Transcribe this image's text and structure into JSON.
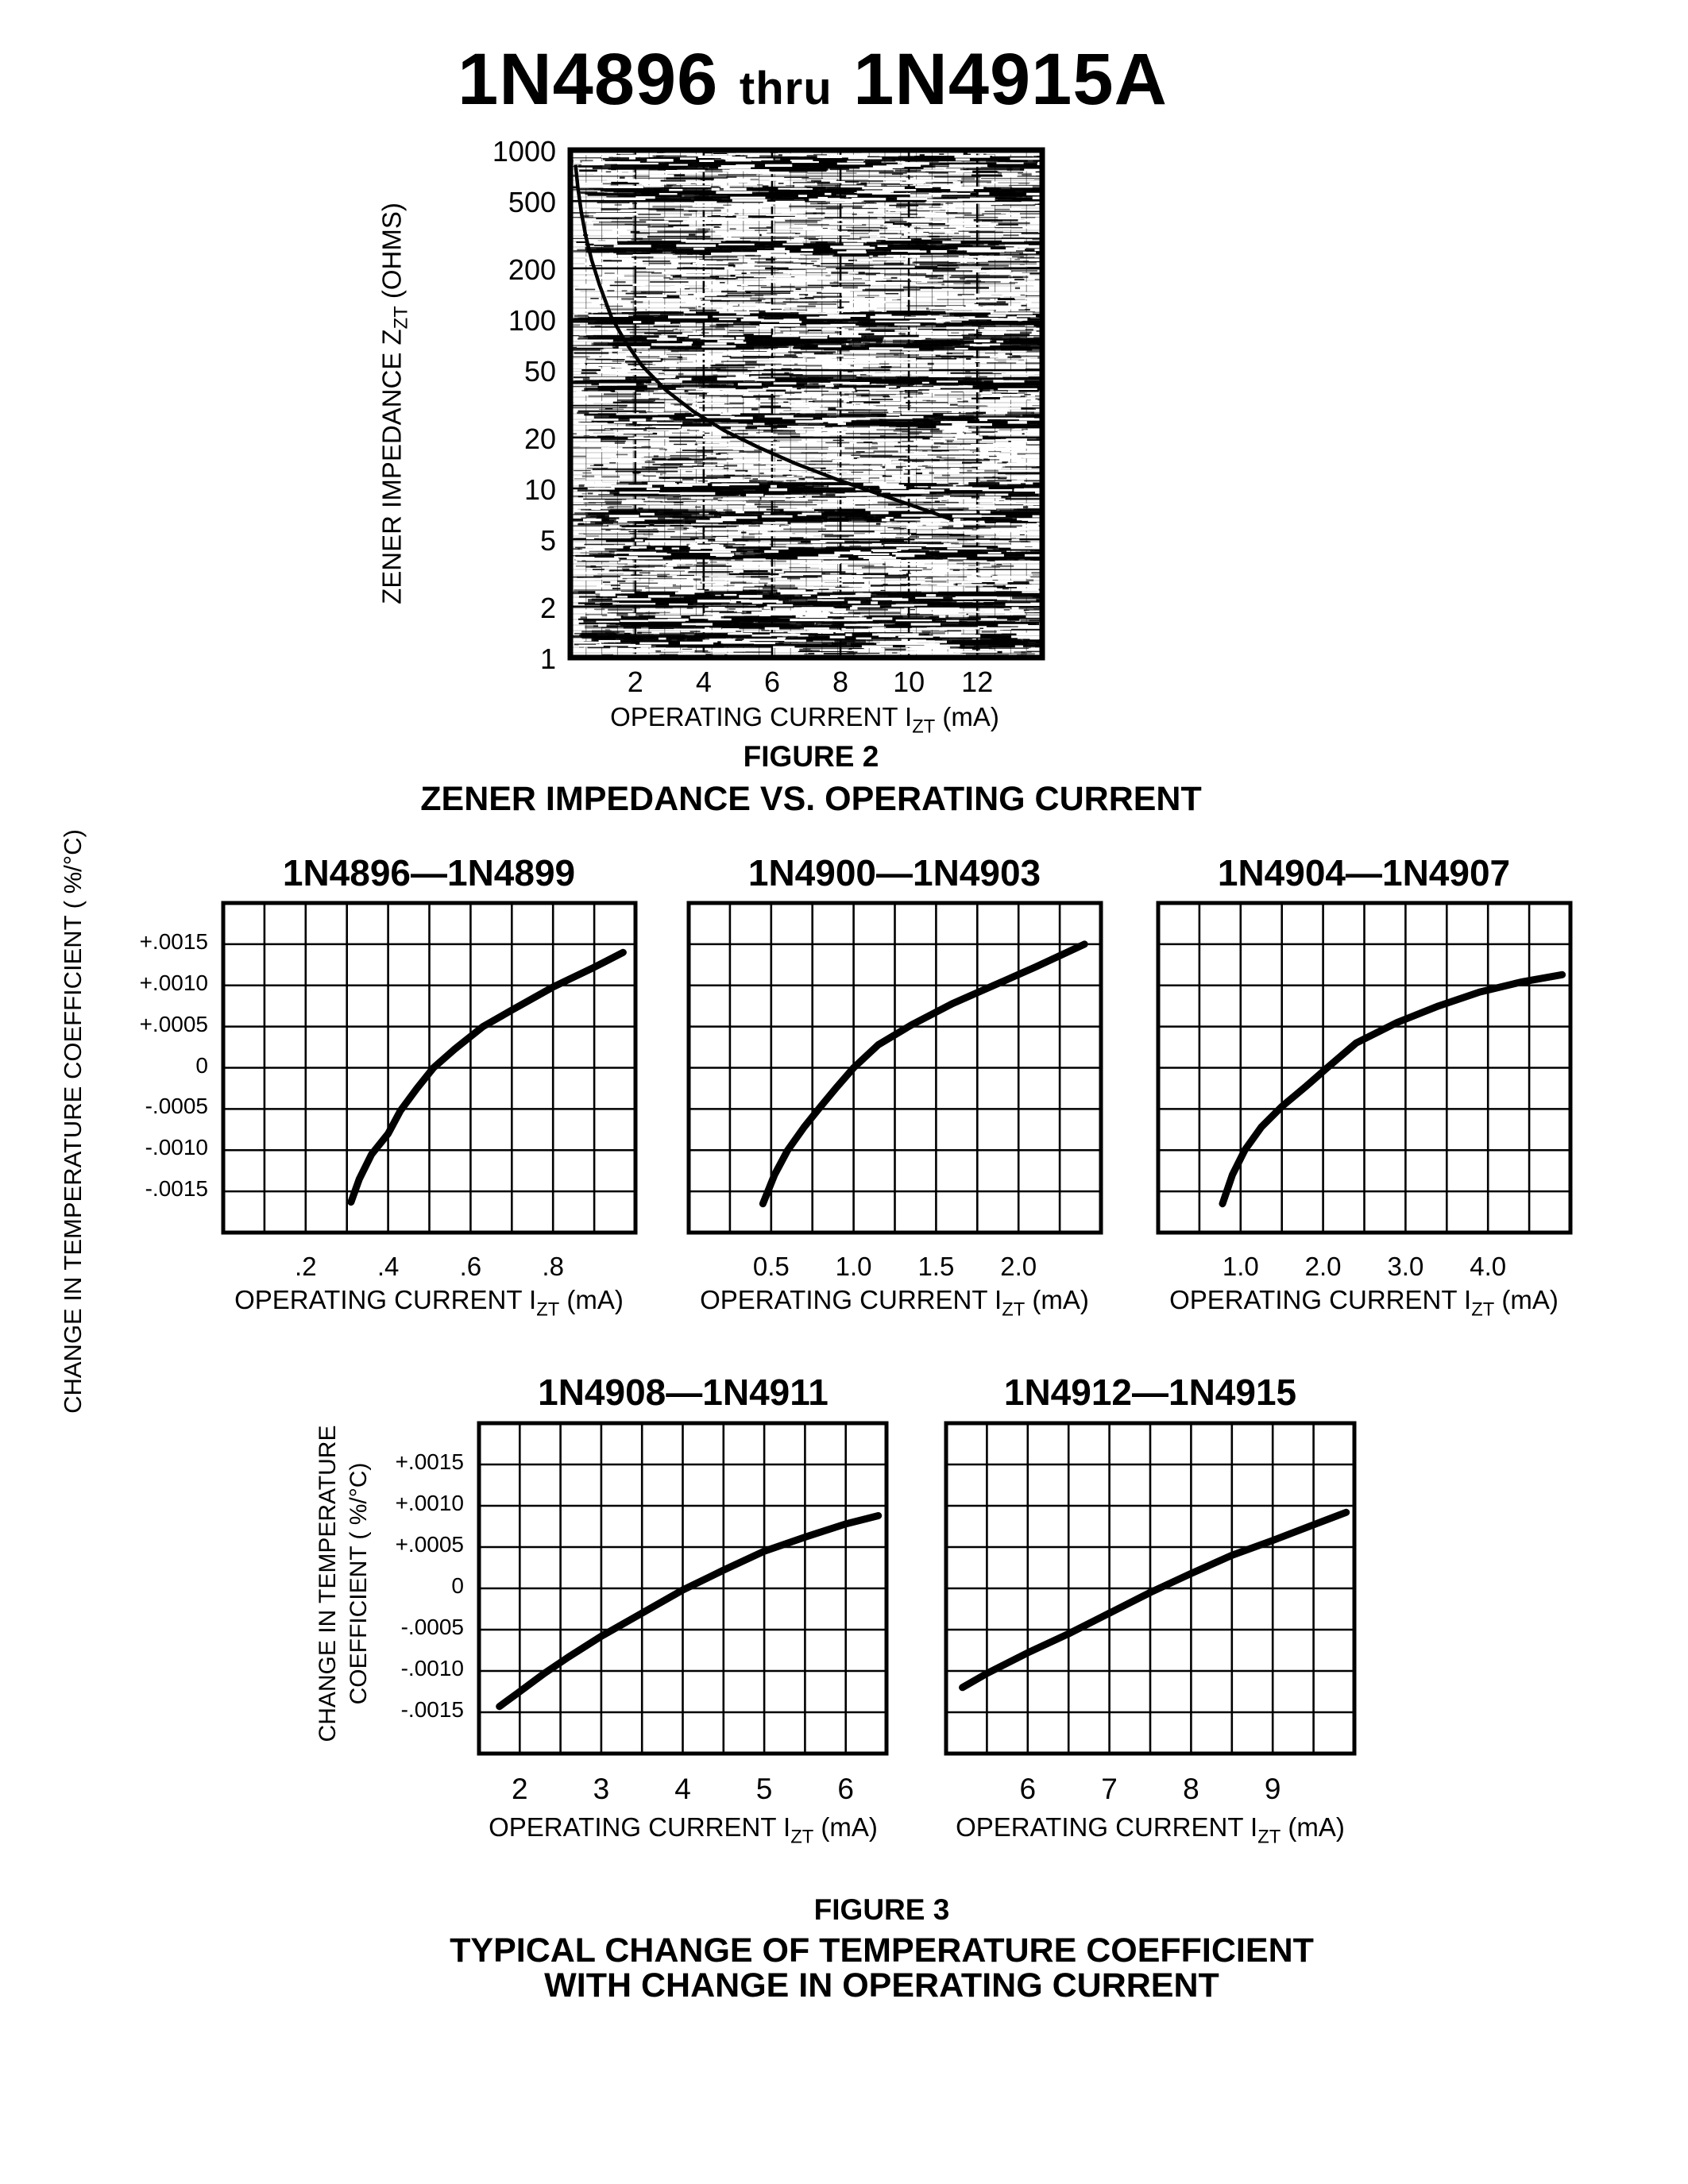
{
  "page": {
    "background": "#ffffff",
    "ink": "#000000"
  },
  "header": {
    "title_left": "1N4896",
    "title_mid": "thru",
    "title_right": "1N4915A"
  },
  "figure2": {
    "figure_label": "FIGURE 2",
    "caption": "ZENER IMPEDANCE VS. OPERATING CURRENT",
    "y_axis_title": {
      "pre": "ZENER IMPEDANCE Z",
      "sub": "ZT",
      "post": " (OHMS)"
    },
    "x_axis_title": {
      "pre": "OPERATING CURRENT I",
      "sub": "ZT",
      "post": " (mA)"
    }
  },
  "figure3": {
    "figure_label": "FIGURE 3",
    "caption_line1": "TYPICAL CHANGE OF TEMPERATURE COEFFICIENT",
    "caption_line2": "WITH CHANGE IN OPERATING CURRENT",
    "left_y_axis_title": "CHANGE IN TEMPERATURE COEFFICIENT ( %/°C)",
    "bottom_y_axis_title_line1": "CHANGE IN TEMPERATURE",
    "bottom_y_axis_title_line2": "COEFFICIENT ( %/°C)",
    "x_axis_title": {
      "pre": "OPERATING CURRENT I",
      "sub": "ZT",
      "post": " (mA)"
    }
  },
  "chart_data": [
    {
      "id": "impedance",
      "type": "line",
      "title": "",
      "x_scale": "linear",
      "y_scale": "log",
      "xlabel": "OPERATING CURRENT IZT (mA)",
      "ylabel": "ZENER IMPEDANCE ZZT (OHMS)",
      "xlim": [
        0.1,
        13.9
      ],
      "ylim": [
        1,
        1000
      ],
      "grid": "dense scanned log grid",
      "xticks": [
        {
          "v": 2,
          "label": "2"
        },
        {
          "v": 4,
          "label": "4"
        },
        {
          "v": 6,
          "label": "6"
        },
        {
          "v": 8,
          "label": "8"
        },
        {
          "v": 10,
          "label": "10"
        },
        {
          "v": 12,
          "label": "12"
        }
      ],
      "yticks": [
        {
          "v": 1000,
          "label": "1000"
        },
        {
          "v": 500,
          "label": "500"
        },
        {
          "v": 200,
          "label": "200"
        },
        {
          "v": 100,
          "label": "100"
        },
        {
          "v": 50,
          "label": "50"
        },
        {
          "v": 20,
          "label": "20"
        },
        {
          "v": 10,
          "label": "10"
        },
        {
          "v": 5,
          "label": "5"
        },
        {
          "v": 2,
          "label": "2"
        },
        {
          "v": 1,
          "label": "1"
        }
      ],
      "points": [
        [
          0.25,
          820
        ],
        [
          0.32,
          600
        ],
        [
          0.42,
          430
        ],
        [
          0.55,
          310
        ],
        [
          0.72,
          225
        ],
        [
          0.95,
          160
        ],
        [
          1.3,
          103
        ],
        [
          1.7,
          74
        ],
        [
          2.2,
          53
        ],
        [
          2.9,
          38
        ],
        [
          3.7,
          28.5
        ],
        [
          4.6,
          22
        ],
        [
          5.6,
          17.5
        ],
        [
          6.7,
          14
        ],
        [
          7.9,
          11.3
        ],
        [
          9.1,
          9.3
        ],
        [
          10.2,
          7.8
        ],
        [
          11.3,
          6.5
        ]
      ]
    },
    {
      "id": "tc1",
      "type": "line",
      "title": "1N4896—1N4899",
      "x_scale": "linear",
      "y_scale": "linear",
      "xlim": [
        0,
        1.0
      ],
      "ylim": [
        -0.002,
        0.002
      ],
      "xticks": [
        {
          "v": 0.2,
          "label": ".2"
        },
        {
          "v": 0.4,
          "label": ".4"
        },
        {
          "v": 0.6,
          "label": ".6"
        },
        {
          "v": 0.8,
          "label": ".8"
        }
      ],
      "yticks": [
        {
          "v": 0.0015,
          "label": "+.0015"
        },
        {
          "v": 0.001,
          "label": "+.0010"
        },
        {
          "v": 0.0005,
          "label": "+.0005"
        },
        {
          "v": 0,
          "label": "0"
        },
        {
          "v": -0.0005,
          "label": "-.0005"
        },
        {
          "v": -0.001,
          "label": "-.0010"
        },
        {
          "v": -0.0015,
          "label": "-.0015"
        }
      ],
      "points": [
        [
          0.31,
          -0.00163
        ],
        [
          0.33,
          -0.00135
        ],
        [
          0.36,
          -0.00105
        ],
        [
          0.4,
          -0.0008
        ],
        [
          0.43,
          -0.00052
        ],
        [
          0.47,
          -0.00025
        ],
        [
          0.51,
          0
        ],
        [
          0.56,
          0.00022
        ],
        [
          0.63,
          0.0005
        ],
        [
          0.7,
          0.0007
        ],
        [
          0.8,
          0.00098
        ],
        [
          0.9,
          0.00122
        ],
        [
          0.97,
          0.0014
        ]
      ]
    },
    {
      "id": "tc2",
      "type": "line",
      "title": "1N4900—1N4903",
      "x_scale": "linear",
      "y_scale": "linear",
      "xlim": [
        0,
        2.5
      ],
      "ylim": [
        -0.002,
        0.002
      ],
      "xticks": [
        {
          "v": 0.5,
          "label": "0.5"
        },
        {
          "v": 1.0,
          "label": "1.0"
        },
        {
          "v": 1.5,
          "label": "1.5"
        },
        {
          "v": 2.0,
          "label": "2.0"
        }
      ],
      "points": [
        [
          0.45,
          -0.00165
        ],
        [
          0.52,
          -0.0013
        ],
        [
          0.6,
          -0.001
        ],
        [
          0.7,
          -0.00072
        ],
        [
          0.8,
          -0.00047
        ],
        [
          0.9,
          -0.00023
        ],
        [
          1.0,
          0
        ],
        [
          1.15,
          0.00028
        ],
        [
          1.35,
          0.00052
        ],
        [
          1.6,
          0.00078
        ],
        [
          1.85,
          0.001
        ],
        [
          2.1,
          0.00122
        ],
        [
          2.4,
          0.0015
        ]
      ]
    },
    {
      "id": "tc3",
      "type": "line",
      "title": "1N4904—1N4907",
      "x_scale": "linear",
      "y_scale": "linear",
      "xlim": [
        0,
        5
      ],
      "ylim": [
        -0.002,
        0.002
      ],
      "xticks": [
        {
          "v": 1.0,
          "label": "1.0"
        },
        {
          "v": 2.0,
          "label": "2.0"
        },
        {
          "v": 3.0,
          "label": "3.0"
        },
        {
          "v": 4.0,
          "label": "4.0"
        }
      ],
      "points": [
        [
          0.78,
          -0.00165
        ],
        [
          0.9,
          -0.0013
        ],
        [
          1.05,
          -0.001
        ],
        [
          1.25,
          -0.00072
        ],
        [
          1.5,
          -0.00047
        ],
        [
          1.8,
          -0.00022
        ],
        [
          2.05,
          0
        ],
        [
          2.4,
          0.0003
        ],
        [
          2.9,
          0.00055
        ],
        [
          3.4,
          0.00075
        ],
        [
          3.9,
          0.00092
        ],
        [
          4.4,
          0.00104
        ],
        [
          4.9,
          0.00113
        ]
      ]
    },
    {
      "id": "tc4",
      "type": "line",
      "title": "1N4908—1N4911",
      "x_scale": "linear",
      "y_scale": "linear",
      "xlim": [
        1.5,
        6.5
      ],
      "ylim": [
        -0.002,
        0.002
      ],
      "xticks": [
        {
          "v": 2,
          "label": "2"
        },
        {
          "v": 3,
          "label": "3"
        },
        {
          "v": 4,
          "label": "4"
        },
        {
          "v": 5,
          "label": "5"
        },
        {
          "v": 6,
          "label": "6"
        }
      ],
      "yticks": [
        {
          "v": 0.0015,
          "label": "+.0015"
        },
        {
          "v": 0.001,
          "label": "+.0010"
        },
        {
          "v": 0.0005,
          "label": "+.0005"
        },
        {
          "v": 0,
          "label": "0"
        },
        {
          "v": -0.0005,
          "label": "-.0005"
        },
        {
          "v": -0.001,
          "label": "-.0010"
        },
        {
          "v": -0.0015,
          "label": "-.0015"
        }
      ],
      "points": [
        [
          1.75,
          -0.00143
        ],
        [
          2.0,
          -0.00125
        ],
        [
          2.3,
          -0.00103
        ],
        [
          2.6,
          -0.00083
        ],
        [
          3.0,
          -0.00058
        ],
        [
          3.5,
          -0.0003
        ],
        [
          4.0,
          -2e-05
        ],
        [
          4.5,
          0.00022
        ],
        [
          5.0,
          0.00045
        ],
        [
          5.5,
          0.00062
        ],
        [
          6.0,
          0.00078
        ],
        [
          6.4,
          0.00088
        ]
      ]
    },
    {
      "id": "tc5",
      "type": "line",
      "title": "1N4912—1N4915",
      "x_scale": "linear",
      "y_scale": "linear",
      "xlim": [
        5,
        10
      ],
      "ylim": [
        -0.002,
        0.002
      ],
      "xticks": [
        {
          "v": 6,
          "label": "6"
        },
        {
          "v": 7,
          "label": "7"
        },
        {
          "v": 8,
          "label": "8"
        },
        {
          "v": 9,
          "label": "9"
        }
      ],
      "points": [
        [
          5.2,
          -0.0012
        ],
        [
          5.5,
          -0.00103
        ],
        [
          6.0,
          -0.00078
        ],
        [
          6.5,
          -0.00055
        ],
        [
          7.0,
          -0.0003
        ],
        [
          7.5,
          -5e-05
        ],
        [
          8.0,
          0.00018
        ],
        [
          8.5,
          0.0004
        ],
        [
          9.0,
          0.00058
        ],
        [
          9.5,
          0.00077
        ],
        [
          9.9,
          0.00092
        ]
      ]
    }
  ]
}
